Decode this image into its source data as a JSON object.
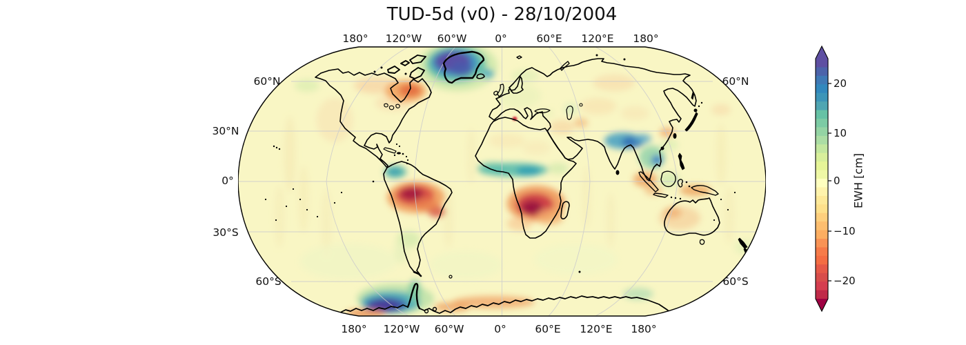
{
  "title": "TUD-5d (v0) - 28/10/2004",
  "axis": {
    "top_lon": [
      "180°",
      "120°W",
      "60°W",
      "0°",
      "60°E",
      "120°E",
      "180°"
    ],
    "bottom_lon": [
      "180°",
      "120°W",
      "60°W",
      "0°",
      "60°E",
      "120°E",
      "180°"
    ],
    "left_lat": [
      "60°N",
      "30°N",
      "0°",
      "30°S",
      "60°S"
    ],
    "right_lat": [
      "60°N",
      "60°S"
    ]
  },
  "colorbar": {
    "label": "EWH [cm]",
    "ticks": [
      "20",
      "10",
      "0",
      "−10",
      "−20"
    ],
    "tick_values": [
      20,
      10,
      0,
      -10,
      -20
    ],
    "range": [
      -25,
      25
    ],
    "extend": "both",
    "colormap": "Spectral_r",
    "arrow_top_color": "#5e4fa2",
    "arrow_bottom_color": "#9e0142",
    "segment_colors_top_to_bottom": [
      "#5e4fa2",
      "#4c63aa",
      "#3f79b5",
      "#3288bd",
      "#3d95b8",
      "#4fa5b2",
      "#66c2a5",
      "#7ccba4",
      "#94d4a4",
      "#abdda4",
      "#c3e79f",
      "#d8ef9b",
      "#e6f598",
      "#eff8a6",
      "#ffffbf",
      "#fff3ac",
      "#fee999",
      "#fee08b",
      "#fecf7d",
      "#fdbe6f",
      "#fdae61",
      "#f99355",
      "#f67b49",
      "#f46d43",
      "#e65948",
      "#d84d4b",
      "#d53e4f",
      "#c02a49"
    ]
  },
  "map_colors": {
    "background": "#f9f6c4",
    "stripe": "#f3e6ae",
    "coastline": "#000000",
    "gridline": "#cccccc",
    "strong_positive": "#5a4fa5",
    "positive": "#3e8fc0",
    "mild_positive": "#5abcac",
    "neutral": "#ffffbf",
    "mild_negative": "#f2a562",
    "negative": "#d84a45",
    "strong_negative": "#9c1240"
  },
  "chart_data": {
    "type": "heatmap",
    "title": "TUD-5d (v0) - 28/10/2004",
    "subtitle_date": "28/10/2004",
    "projection": "Robinson",
    "units": "cm (equivalent water height)",
    "colorbar_label": "EWH [cm]",
    "colorbar_ticks": [
      20,
      10,
      0,
      -10,
      -20
    ],
    "value_range": [
      -25,
      25
    ],
    "gridlines": {
      "lon_interval_deg": 60,
      "lat_interval_deg": 30,
      "grid_on": true
    },
    "legend_position": "right-vertical-colorbar",
    "anomalies_cm": [
      {
        "region": "Greenland",
        "value": 25
      },
      {
        "region": "Northeast Canada / Hudson Bay east",
        "value": -12
      },
      {
        "region": "Amazon Basin",
        "value": -22
      },
      {
        "region": "Congo / Angola",
        "value": -24
      },
      {
        "region": "Sahel band (~10N Africa)",
        "value": 12
      },
      {
        "region": "North India / Bangladesh / Himalaya",
        "value": 18
      },
      {
        "region": "Indochina / Mekong",
        "value": 14
      },
      {
        "region": "Venezuela coast",
        "value": 10
      },
      {
        "region": "Argentina Pampas",
        "value": 5
      },
      {
        "region": "West Antarctica",
        "value": 25
      },
      {
        "region": "Antarctic Peninsula",
        "value": 10
      },
      {
        "region": "East Antarctica coast",
        "value": -8
      },
      {
        "region": "Sumatra / Andaman",
        "value": -8
      },
      {
        "region": "Australia interior",
        "value": -4
      },
      {
        "region": "Tunisia spot",
        "value": -20
      },
      {
        "region": "Ocean background",
        "value": -1
      }
    ]
  }
}
